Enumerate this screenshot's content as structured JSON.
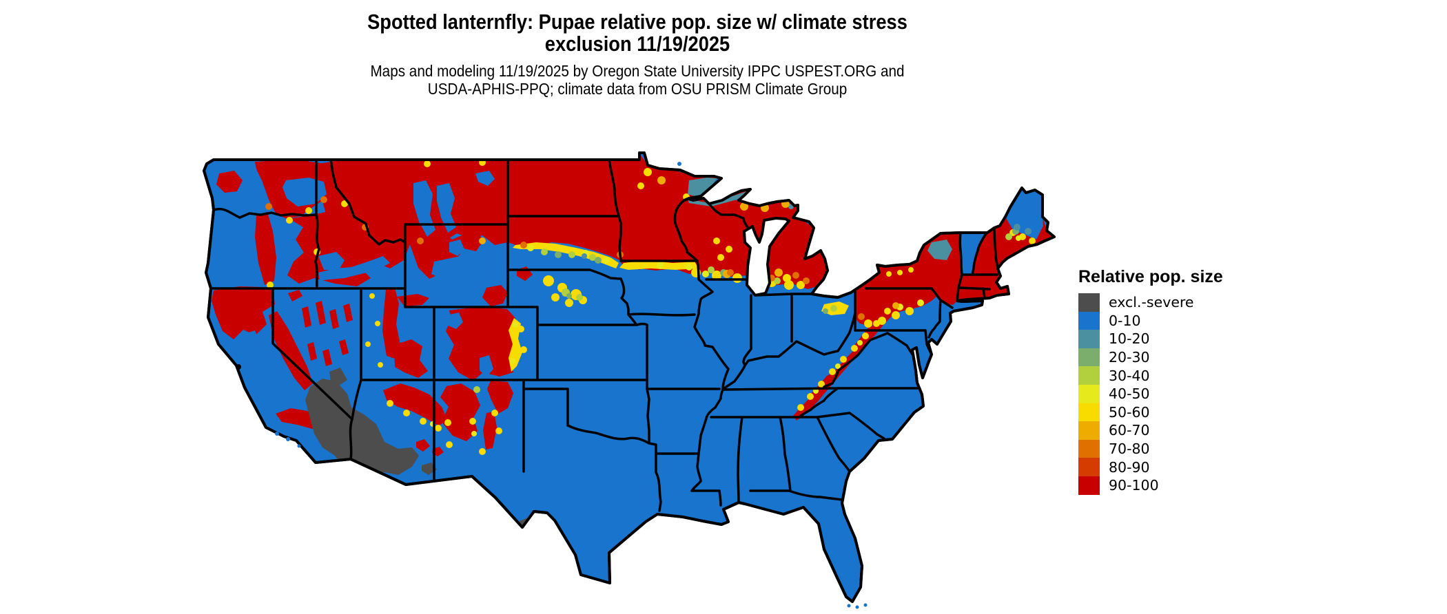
{
  "header": {
    "title_line1": "Spotted lanternfly: Pupae relative pop. size w/ climate stress",
    "title_line2": "exclusion 11/19/2025",
    "subtitle_line1": "Maps and modeling 11/19/2025 by Oregon State University IPPC USPEST.ORG and",
    "subtitle_line2": "USDA-APHIS-PPQ; climate data from OSU PRISM Climate Group"
  },
  "legend": {
    "title": "Relative pop. size",
    "items": [
      {
        "label": "excl.-severe",
        "color": "#4d4d4d"
      },
      {
        "label": "0-10",
        "color": "#1874cd"
      },
      {
        "label": "10-20",
        "color": "#4a90a0"
      },
      {
        "label": "20-30",
        "color": "#7bae6c"
      },
      {
        "label": "30-40",
        "color": "#b2d03e"
      },
      {
        "label": "40-50",
        "color": "#e6ea1c"
      },
      {
        "label": "50-60",
        "color": "#f8dc00"
      },
      {
        "label": "60-70",
        "color": "#eeab00"
      },
      {
        "label": "70-80",
        "color": "#e07000"
      },
      {
        "label": "80-90",
        "color": "#d43c00"
      },
      {
        "label": "90-100",
        "color": "#c80000"
      }
    ]
  },
  "map": {
    "region": "Conterminous United States",
    "colors": {
      "background": "#ffffff",
      "state_border": "#000000",
      "water": "#ffffff"
    }
  }
}
